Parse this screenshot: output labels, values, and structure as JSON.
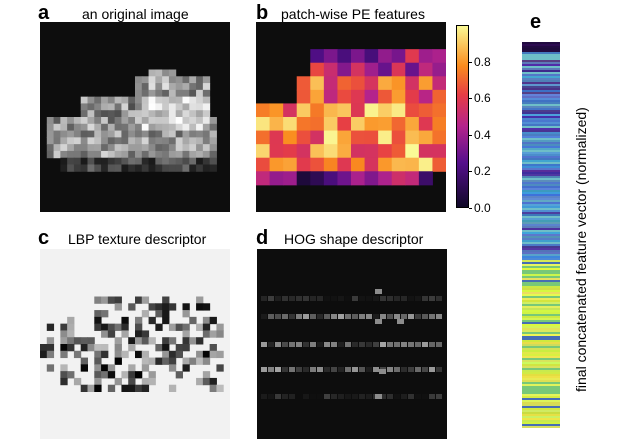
{
  "panels": {
    "a": {
      "letter": "a",
      "title": "an original image"
    },
    "b": {
      "letter": "b",
      "title": "patch-wise PE features"
    },
    "c": {
      "letter": "c",
      "title": "LBP texture descriptor"
    },
    "d": {
      "letter": "d",
      "title": "HOG shape descriptor"
    },
    "e": {
      "letter": "e",
      "ylabel": "final concatenated feature vector (normalized)"
    }
  },
  "colorbar": {
    "ticks": [
      "0.0",
      "0.2",
      "0.4",
      "0.6",
      "0.8"
    ],
    "tick_values": [
      0.0,
      0.2,
      0.4,
      0.6,
      0.8
    ],
    "range": [
      0,
      1
    ],
    "colormap": "plasma-inferno"
  },
  "colors": {
    "background": "#ffffff",
    "dark_bg": "#0d0d0d",
    "lbp_bg": "#f2f2f2"
  }
}
